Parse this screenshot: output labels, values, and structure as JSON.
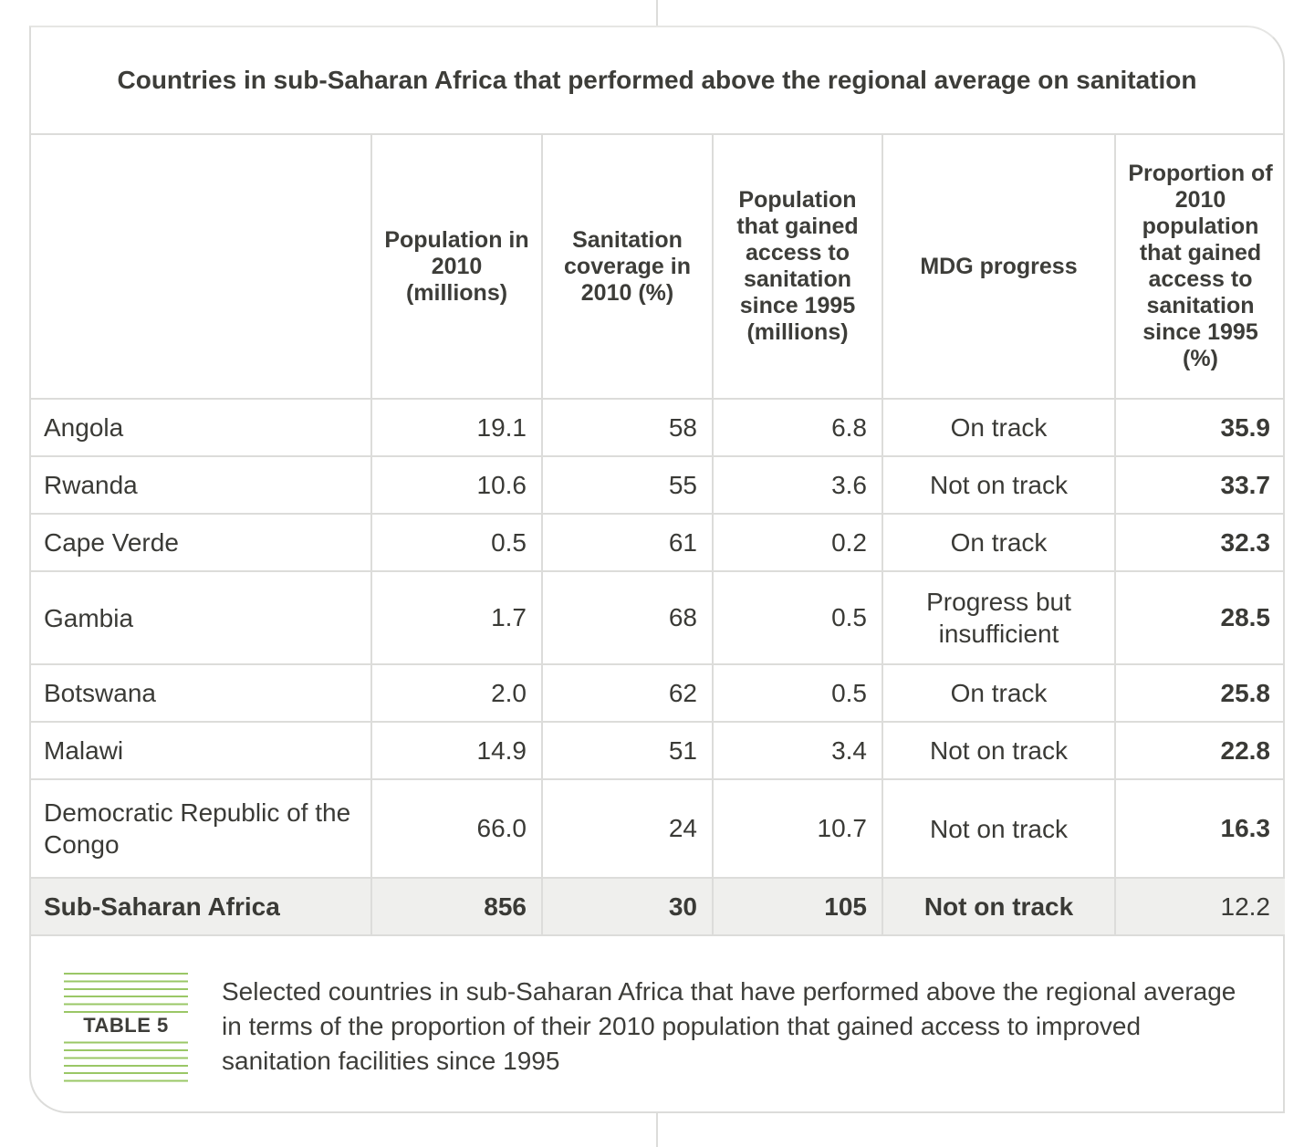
{
  "title": "Countries in sub-Saharan Africa that performed above the regional average on sanitation",
  "columns": [
    "",
    "Population in 2010 (millions)",
    "Sanitation coverage in 2010 (%)",
    "Population that gained access to sanitation since 1995 (millions)",
    "MDG progress",
    "Proportion of 2010 population that gained access to sanitation since 1995 (%)"
  ],
  "rows": [
    {
      "country": "Angola",
      "population": "19.1",
      "coverage": "58",
      "gained": "6.8",
      "mdg": "On track",
      "proportion": "35.9"
    },
    {
      "country": "Rwanda",
      "population": "10.6",
      "coverage": "55",
      "gained": "3.6",
      "mdg": "Not on track",
      "proportion": "33.7"
    },
    {
      "country": "Cape Verde",
      "population": "0.5",
      "coverage": "61",
      "gained": "0.2",
      "mdg": "On track",
      "proportion": "32.3"
    },
    {
      "country": "Gambia",
      "population": "1.7",
      "coverage": "68",
      "gained": "0.5",
      "mdg": "Progress but insufficient",
      "proportion": "28.5"
    },
    {
      "country": "Botswana",
      "population": "2.0",
      "coverage": "62",
      "gained": "0.5",
      "mdg": "On track",
      "proportion": "25.8"
    },
    {
      "country": "Malawi",
      "population": "14.9",
      "coverage": "51",
      "gained": "3.4",
      "mdg": "Not on track",
      "proportion": "22.8"
    },
    {
      "country": "Democratic Republic of the Congo",
      "population": "66.0",
      "coverage": "24",
      "gained": "10.7",
      "mdg": "Not on track",
      "proportion": "16.3"
    }
  ],
  "total": {
    "country": "Sub-Saharan Africa",
    "population": "856",
    "coverage": "30",
    "gained": "105",
    "mdg": "Not on track",
    "proportion": "12.2"
  },
  "caption": {
    "label": "TABLE 5",
    "text": "Selected countries in sub-Saharan Africa that have performed above the regional average in terms of the proportion of their 2010 population that gained access to improved sanitation facilities since 1995"
  },
  "colors": {
    "rule": "#dcdcda",
    "total_row_bg": "#efefed",
    "accent_lines": "#9ac766",
    "text": "#3d3d39"
  }
}
